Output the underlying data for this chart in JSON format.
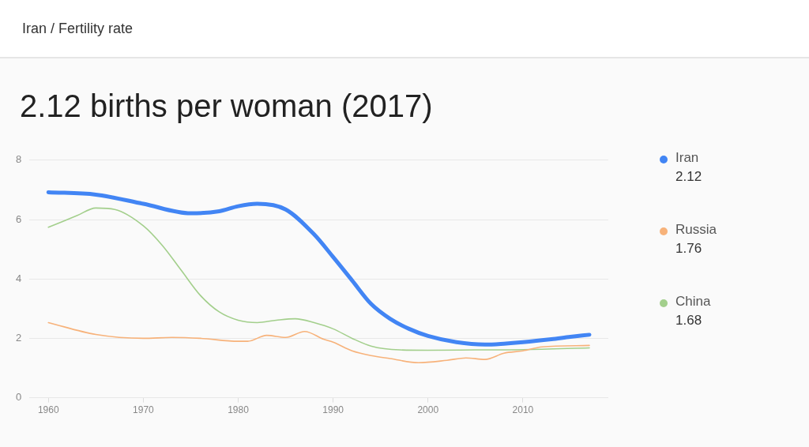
{
  "chart_data": {
    "type": "line",
    "subtitle": "Iran / Fertility rate",
    "title": "2.12 births per woman (2017)",
    "annotations": [
      "2.12",
      "1.76",
      "1.68"
    ],
    "xlim": [
      1958,
      2019
    ],
    "xticks": [
      1960,
      1970,
      1980,
      1990,
      2000,
      2010
    ],
    "ylim": [
      0,
      8
    ],
    "yticks": [
      0,
      2,
      4,
      6,
      8
    ],
    "grid": "y",
    "legend": "right",
    "marker": "none",
    "series": [
      {
        "name": "Iran",
        "color": "#4285f4",
        "x": [
          1960,
          1965,
          1970,
          1975,
          1978,
          1980,
          1982,
          1985,
          1988,
          1990,
          1992,
          1994,
          1996,
          1998,
          2000,
          2003,
          2006,
          2008,
          2010,
          2013,
          2015,
          2017
        ],
        "values": [
          6.92,
          6.84,
          6.53,
          6.21,
          6.28,
          6.45,
          6.53,
          6.34,
          5.5,
          4.74,
          3.95,
          3.16,
          2.66,
          2.32,
          2.08,
          1.87,
          1.79,
          1.82,
          1.87,
          1.97,
          2.05,
          2.12
        ]
      },
      {
        "name": "Russia",
        "color": "#f7b27a",
        "x": [
          1960,
          1965,
          1970,
          1973,
          1976,
          1980,
          1981,
          1983,
          1985,
          1987,
          1989,
          1990,
          1992,
          1994,
          1996,
          1999,
          2002,
          2004,
          2006,
          2008,
          2010,
          2012,
          2017
        ],
        "values": [
          2.53,
          2.13,
          2.0,
          2.03,
          2.0,
          1.9,
          1.9,
          2.1,
          2.03,
          2.23,
          1.97,
          1.87,
          1.58,
          1.42,
          1.32,
          1.18,
          1.26,
          1.34,
          1.29,
          1.5,
          1.58,
          1.71,
          1.76
        ]
      },
      {
        "name": "China",
        "color": "#a3cf8c",
        "x": [
          1960,
          1963,
          1965,
          1967,
          1970,
          1972,
          1974,
          1976,
          1978,
          1980,
          1982,
          1984,
          1986,
          1988,
          1990,
          1992,
          1994,
          1997,
          2000,
          2005,
          2010,
          2017
        ],
        "values": [
          5.74,
          6.13,
          6.39,
          6.34,
          5.79,
          5.13,
          4.29,
          3.45,
          2.89,
          2.61,
          2.53,
          2.61,
          2.66,
          2.53,
          2.32,
          2.0,
          1.74,
          1.61,
          1.6,
          1.61,
          1.62,
          1.68
        ]
      }
    ]
  }
}
